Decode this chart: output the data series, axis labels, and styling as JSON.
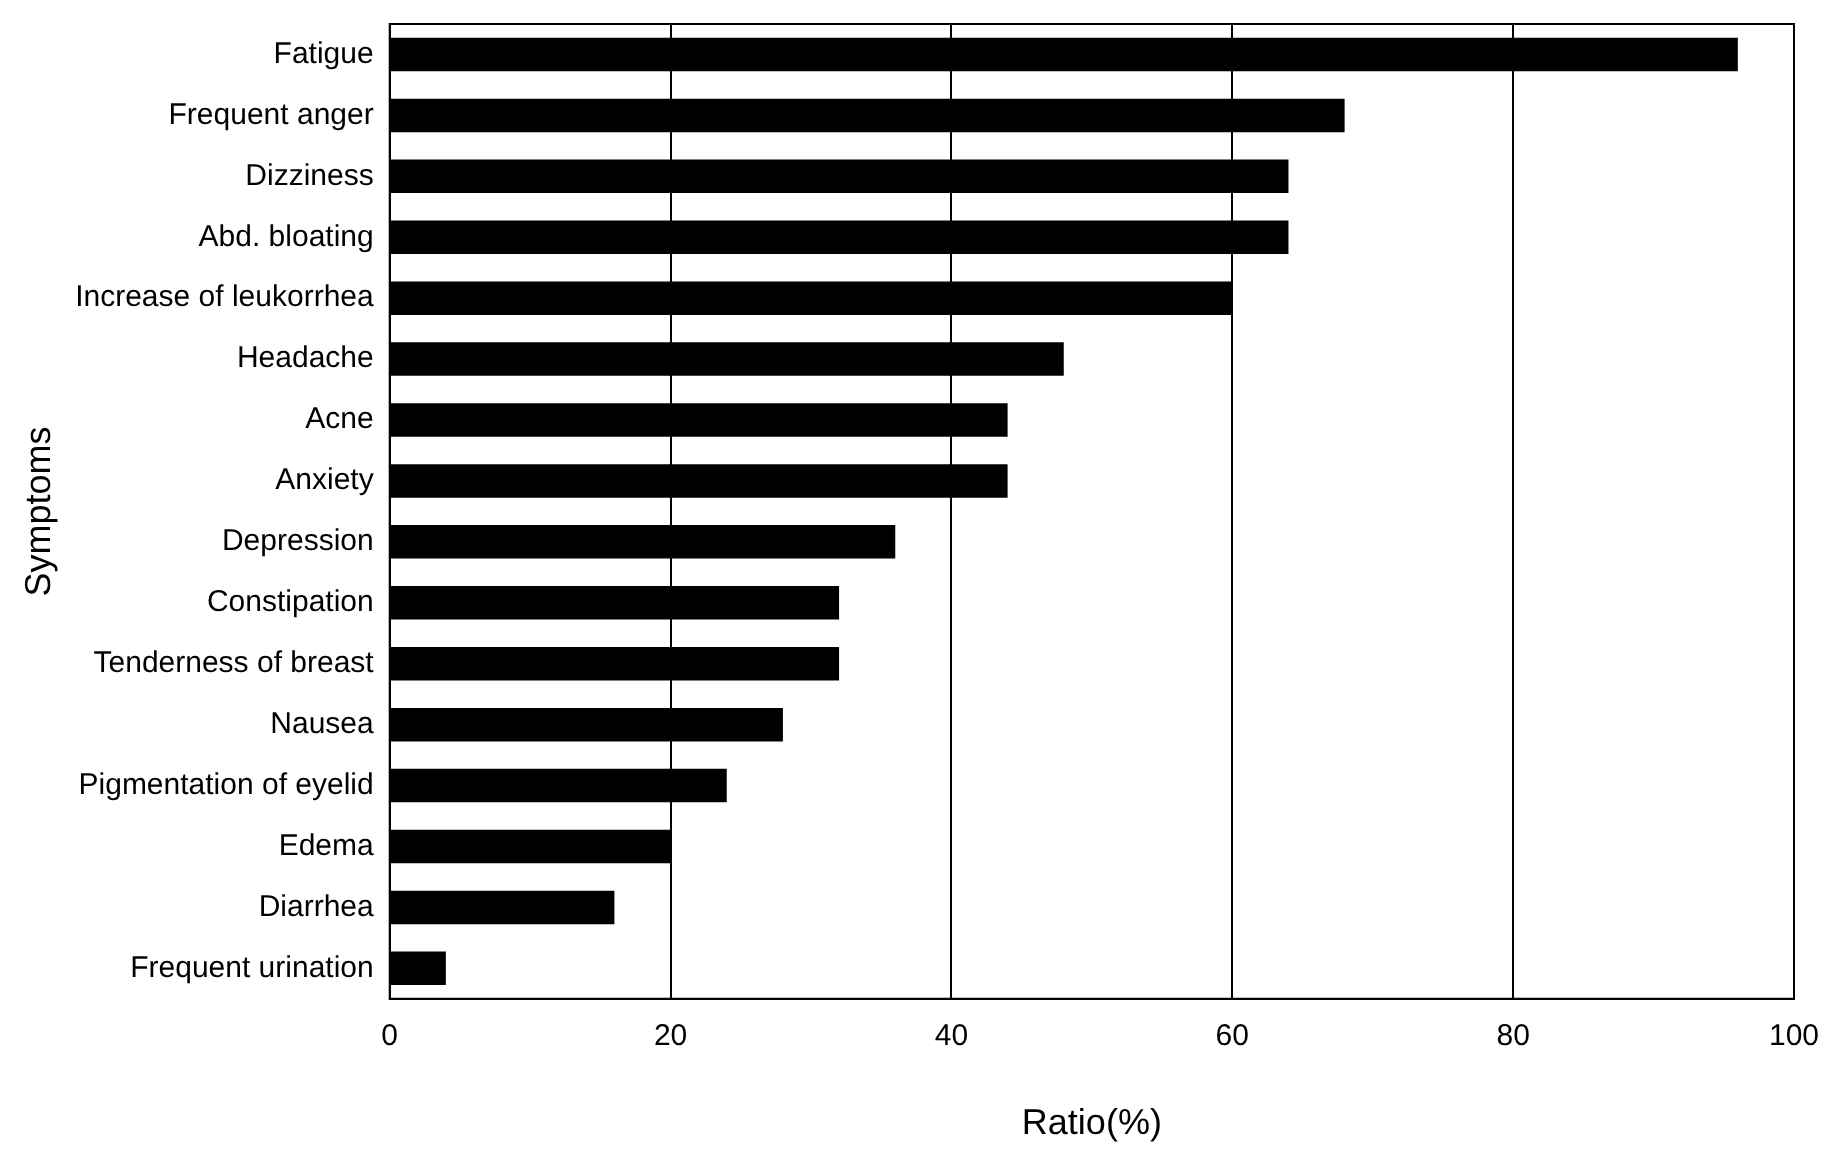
{
  "chart_data": {
    "type": "bar",
    "orientation": "horizontal",
    "xlabel": "Ratio(%)",
    "ylabel": "Symptoms",
    "categories": [
      "Fatigue",
      "Frequent anger",
      "Dizziness",
      "Abd. bloating",
      "Increase of leukorrhea",
      "Headache",
      "Acne",
      "Anxiety",
      "Depression",
      "Constipation",
      "Tenderness of breast",
      "Nausea",
      "Pigmentation of eyelid",
      "Edema",
      "Diarrhea",
      "Frequent urination"
    ],
    "values": [
      96,
      68,
      64,
      64,
      60,
      48,
      44,
      44,
      36,
      32,
      32,
      28,
      24,
      20,
      16,
      4
    ],
    "color": "#000000",
    "xlim": [
      0,
      100
    ],
    "xticks": [
      0,
      20,
      40,
      60,
      80,
      100
    ],
    "grid": "x"
  }
}
